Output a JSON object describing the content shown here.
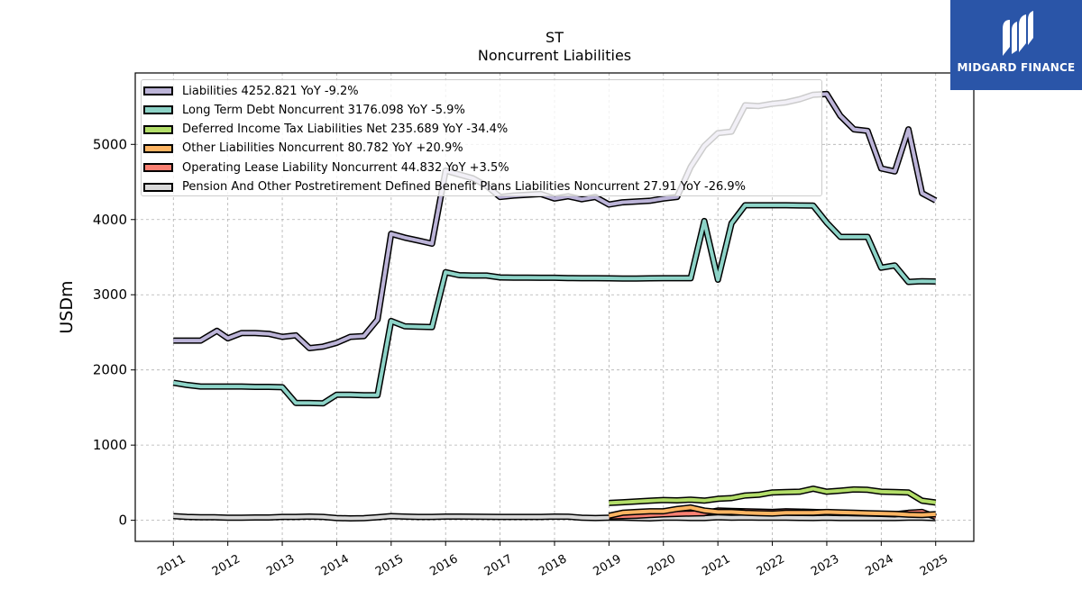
{
  "header": {
    "title": "ST",
    "subtitle": "Noncurrent  Liabilities"
  },
  "brand": {
    "name": "MIDGARD FINANCE",
    "color": "#2a55a8"
  },
  "chart_data": {
    "type": "line",
    "ylabel": "USDm",
    "xlim": [
      2010.3,
      2025.7
    ],
    "ylim": [
      -280,
      5950
    ],
    "y_ticks": [
      0,
      1000,
      2000,
      3000,
      4000,
      5000
    ],
    "x_ticks": [
      2011,
      2012,
      2013,
      2014,
      2015,
      2016,
      2017,
      2018,
      2019,
      2020,
      2021,
      2022,
      2023,
      2024,
      2025
    ],
    "grid": true,
    "legend_position": "top-left",
    "series": [
      {
        "name": "Liabilities  4252.821 YoY -9.2%",
        "color": "#bcb4d8",
        "points": [
          [
            2011.0,
            2390
          ],
          [
            2011.25,
            2390
          ],
          [
            2011.5,
            2390
          ],
          [
            2011.8,
            2520
          ],
          [
            2012.0,
            2420
          ],
          [
            2012.25,
            2490
          ],
          [
            2012.5,
            2490
          ],
          [
            2012.75,
            2480
          ],
          [
            2013.0,
            2440
          ],
          [
            2013.25,
            2460
          ],
          [
            2013.5,
            2290
          ],
          [
            2013.75,
            2310
          ],
          [
            2014.0,
            2360
          ],
          [
            2014.25,
            2440
          ],
          [
            2014.5,
            2450
          ],
          [
            2014.75,
            2670
          ],
          [
            2015.0,
            3810
          ],
          [
            2015.25,
            3760
          ],
          [
            2015.5,
            3720
          ],
          [
            2015.75,
            3680
          ],
          [
            2016.0,
            4650
          ],
          [
            2016.25,
            4600
          ],
          [
            2016.5,
            4550
          ],
          [
            2016.75,
            4450
          ],
          [
            2017.0,
            4300
          ],
          [
            2017.25,
            4320
          ],
          [
            2017.5,
            4330
          ],
          [
            2017.75,
            4340
          ],
          [
            2018.0,
            4280
          ],
          [
            2018.25,
            4310
          ],
          [
            2018.5,
            4270
          ],
          [
            2018.75,
            4300
          ],
          [
            2019.0,
            4200
          ],
          [
            2019.25,
            4230
          ],
          [
            2019.5,
            4240
          ],
          [
            2019.75,
            4250
          ],
          [
            2020.0,
            4280
          ],
          [
            2020.25,
            4300
          ],
          [
            2020.5,
            4700
          ],
          [
            2020.75,
            4980
          ],
          [
            2021.0,
            5150
          ],
          [
            2021.25,
            5170
          ],
          [
            2021.5,
            5520
          ],
          [
            2021.75,
            5510
          ],
          [
            2022.0,
            5540
          ],
          [
            2022.25,
            5560
          ],
          [
            2022.5,
            5600
          ],
          [
            2022.75,
            5660
          ],
          [
            2023.0,
            5670
          ],
          [
            2023.25,
            5380
          ],
          [
            2023.5,
            5200
          ],
          [
            2023.75,
            5180
          ],
          [
            2024.0,
            4680
          ],
          [
            2024.25,
            4640
          ],
          [
            2024.5,
            5200
          ],
          [
            2024.75,
            4350
          ],
          [
            2025.0,
            4253
          ]
        ]
      },
      {
        "name": "Long Term Debt Noncurrent  3176.098 YoY -5.9%",
        "color": "#8dd3c7",
        "points": [
          [
            2011.0,
            1830
          ],
          [
            2011.25,
            1800
          ],
          [
            2011.5,
            1780
          ],
          [
            2011.8,
            1780
          ],
          [
            2012.0,
            1780
          ],
          [
            2012.25,
            1780
          ],
          [
            2012.5,
            1775
          ],
          [
            2012.75,
            1775
          ],
          [
            2013.0,
            1770
          ],
          [
            2013.25,
            1560
          ],
          [
            2013.5,
            1560
          ],
          [
            2013.75,
            1555
          ],
          [
            2014.0,
            1670
          ],
          [
            2014.25,
            1670
          ],
          [
            2014.5,
            1665
          ],
          [
            2014.75,
            1665
          ],
          [
            2015.0,
            2650
          ],
          [
            2015.25,
            2580
          ],
          [
            2015.5,
            2575
          ],
          [
            2015.75,
            2570
          ],
          [
            2016.0,
            3300
          ],
          [
            2016.25,
            3260
          ],
          [
            2016.5,
            3255
          ],
          [
            2016.75,
            3255
          ],
          [
            2017.0,
            3230
          ],
          [
            2017.25,
            3228
          ],
          [
            2017.5,
            3227
          ],
          [
            2017.75,
            3226
          ],
          [
            2018.0,
            3225
          ],
          [
            2018.25,
            3222
          ],
          [
            2018.5,
            3220
          ],
          [
            2018.75,
            3220
          ],
          [
            2019.0,
            3218
          ],
          [
            2019.25,
            3215
          ],
          [
            2019.5,
            3215
          ],
          [
            2019.75,
            3218
          ],
          [
            2020.0,
            3220
          ],
          [
            2020.25,
            3220
          ],
          [
            2020.5,
            3220
          ],
          [
            2020.75,
            3980
          ],
          [
            2021.0,
            3200
          ],
          [
            2021.25,
            3950
          ],
          [
            2021.5,
            4190
          ],
          [
            2021.75,
            4190
          ],
          [
            2022.0,
            4190
          ],
          [
            2022.25,
            4190
          ],
          [
            2022.5,
            4188
          ],
          [
            2022.75,
            4185
          ],
          [
            2023.0,
            3960
          ],
          [
            2023.25,
            3770
          ],
          [
            2023.5,
            3770
          ],
          [
            2023.75,
            3770
          ],
          [
            2024.0,
            3360
          ],
          [
            2024.25,
            3390
          ],
          [
            2024.5,
            3170
          ],
          [
            2024.75,
            3180
          ],
          [
            2025.0,
            3176
          ]
        ]
      },
      {
        "name": "Deferred Income Tax Liabilities Net  235.689 YoY -34.4%",
        "color": "#b3de69",
        "points": [
          [
            2019.0,
            230
          ],
          [
            2019.25,
            240
          ],
          [
            2019.5,
            250
          ],
          [
            2019.75,
            260
          ],
          [
            2020.0,
            270
          ],
          [
            2020.25,
            265
          ],
          [
            2020.5,
            275
          ],
          [
            2020.75,
            262
          ],
          [
            2021.0,
            285
          ],
          [
            2021.25,
            295
          ],
          [
            2021.5,
            330
          ],
          [
            2021.75,
            340
          ],
          [
            2022.0,
            370
          ],
          [
            2022.25,
            375
          ],
          [
            2022.5,
            380
          ],
          [
            2022.75,
            420
          ],
          [
            2023.0,
            380
          ],
          [
            2023.25,
            395
          ],
          [
            2023.5,
            410
          ],
          [
            2023.75,
            405
          ],
          [
            2024.0,
            380
          ],
          [
            2024.25,
            375
          ],
          [
            2024.5,
            370
          ],
          [
            2024.75,
            260
          ],
          [
            2025.0,
            236
          ]
        ]
      },
      {
        "name": "Other Liabilities Noncurrent  80.782 YoY +20.9%",
        "color": "#fdb462",
        "points": [
          [
            2019.0,
            60
          ],
          [
            2019.25,
            100
          ],
          [
            2019.5,
            110
          ],
          [
            2019.75,
            120
          ],
          [
            2020.0,
            120
          ],
          [
            2020.25,
            150
          ],
          [
            2020.5,
            170
          ],
          [
            2020.75,
            130
          ],
          [
            2021.0,
            110
          ],
          [
            2021.25,
            110
          ],
          [
            2021.5,
            100
          ],
          [
            2021.75,
            95
          ],
          [
            2022.0,
            90
          ],
          [
            2022.25,
            100
          ],
          [
            2022.5,
            100
          ],
          [
            2022.75,
            100
          ],
          [
            2023.0,
            110
          ],
          [
            2023.25,
            105
          ],
          [
            2023.5,
            100
          ],
          [
            2023.75,
            95
          ],
          [
            2024.0,
            90
          ],
          [
            2024.25,
            85
          ],
          [
            2024.5,
            75
          ],
          [
            2024.75,
            70
          ],
          [
            2025.0,
            81
          ]
        ]
      },
      {
        "name": "Operating Lease Liability Noncurrent  44.832 YoY +3.5%",
        "color": "#fb8072",
        "points": [
          [
            2019.0,
            50
          ],
          [
            2019.25,
            55
          ],
          [
            2019.5,
            60
          ],
          [
            2019.75,
            70
          ],
          [
            2020.0,
            80
          ],
          [
            2020.25,
            85
          ],
          [
            2020.5,
            90
          ],
          [
            2020.75,
            95
          ],
          [
            2021.0,
            130
          ],
          [
            2021.25,
            125
          ],
          [
            2021.5,
            120
          ],
          [
            2021.75,
            115
          ],
          [
            2022.0,
            110
          ],
          [
            2022.25,
            120
          ],
          [
            2022.5,
            115
          ],
          [
            2022.75,
            110
          ],
          [
            2023.0,
            105
          ],
          [
            2023.25,
            100
          ],
          [
            2023.5,
            95
          ],
          [
            2023.75,
            90
          ],
          [
            2024.0,
            85
          ],
          [
            2024.25,
            80
          ],
          [
            2024.5,
            100
          ],
          [
            2024.75,
            110
          ],
          [
            2025.0,
            45
          ]
        ]
      },
      {
        "name": "Pension And Other Postretirement Defined Benefit Plans Liabilities Noncurrent  27.91 YoY -26.9%",
        "color": "#d9d9d9",
        "points": [
          [
            2011.0,
            55
          ],
          [
            2011.25,
            45
          ],
          [
            2011.5,
            40
          ],
          [
            2011.75,
            40
          ],
          [
            2012.0,
            35
          ],
          [
            2012.25,
            35
          ],
          [
            2012.5,
            38
          ],
          [
            2012.75,
            38
          ],
          [
            2013.0,
            45
          ],
          [
            2013.25,
            45
          ],
          [
            2013.5,
            50
          ],
          [
            2013.75,
            45
          ],
          [
            2014.0,
            30
          ],
          [
            2014.25,
            25
          ],
          [
            2014.5,
            28
          ],
          [
            2014.75,
            40
          ],
          [
            2015.0,
            55
          ],
          [
            2015.25,
            50
          ],
          [
            2015.5,
            45
          ],
          [
            2015.75,
            45
          ],
          [
            2016.0,
            50
          ],
          [
            2016.25,
            50
          ],
          [
            2016.5,
            48
          ],
          [
            2016.75,
            46
          ],
          [
            2017.0,
            45
          ],
          [
            2017.25,
            45
          ],
          [
            2017.5,
            45
          ],
          [
            2017.75,
            45
          ],
          [
            2018.0,
            50
          ],
          [
            2018.25,
            48
          ],
          [
            2018.5,
            35
          ],
          [
            2018.75,
            30
          ],
          [
            2019.0,
            35
          ],
          [
            2019.25,
            35
          ],
          [
            2019.5,
            30
          ],
          [
            2019.75,
            25
          ],
          [
            2020.0,
            35
          ],
          [
            2020.25,
            35
          ],
          [
            2020.5,
            30
          ],
          [
            2020.75,
            30
          ],
          [
            2021.0,
            40
          ],
          [
            2021.25,
            35
          ],
          [
            2021.5,
            38
          ],
          [
            2021.75,
            35
          ],
          [
            2022.0,
            35
          ],
          [
            2022.25,
            35
          ],
          [
            2022.5,
            32
          ],
          [
            2022.75,
            30
          ],
          [
            2023.0,
            35
          ],
          [
            2023.25,
            30
          ],
          [
            2023.5,
            30
          ],
          [
            2023.75,
            30
          ],
          [
            2024.0,
            30
          ],
          [
            2024.25,
            30
          ],
          [
            2024.5,
            35
          ],
          [
            2024.75,
            35
          ],
          [
            2025.0,
            28
          ]
        ]
      }
    ]
  }
}
